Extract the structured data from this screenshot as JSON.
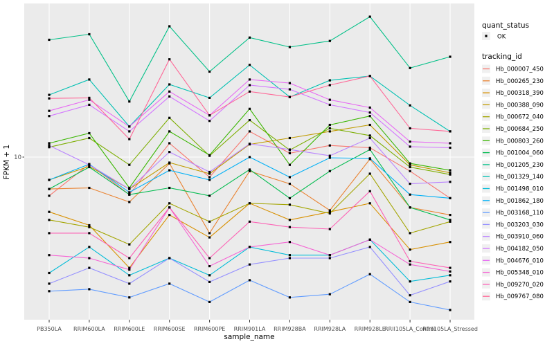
{
  "figure": {
    "background": "#FFFFFF",
    "panel_background": "#EBEBEB",
    "gridline_color": "#FFFFFF",
    "marker_color": "#000000",
    "tick_color": "#333333",
    "legend_key_background": "#F0F0F0"
  },
  "chart_data": {
    "type": "line",
    "title": "",
    "xlabel": "sample_name",
    "ylabel": "FPKM + 1",
    "y_scale": "log10",
    "ylim": [
      1,
      100
    ],
    "y_tick_labels": [
      "10"
    ],
    "grid": "major-on",
    "legend_position": "right",
    "marker": "small-black-square",
    "categories": [
      "PB350LA",
      "RRIM600LA",
      "RRIM600LE",
      "RRIM600SE",
      "RRIM600PE",
      "RRIM901LA",
      "RRIM928BA",
      "RRIM928LA",
      "RRIM928LE",
      "RRII105LA_Control",
      "RRII105LA_Stressed"
    ],
    "series": [
      {
        "name": "Hb_000007_450",
        "color": "#F8766D",
        "quant_status": "OK",
        "values": [
          5.6,
          9.0,
          5.7,
          12.3,
          7.4,
          14.7,
          10.6,
          11.9,
          11.5,
          8.1,
          5.4
        ]
      },
      {
        "name": "Hb_000265_230",
        "color": "#EA8331",
        "quant_status": "OK",
        "values": [
          6.2,
          6.3,
          5.1,
          9.1,
          3.2,
          8.1,
          6.7,
          4.5,
          9.7,
          4.7,
          4.2
        ]
      },
      {
        "name": "Hb_000318_390",
        "color": "#D89000",
        "quant_status": "OK",
        "values": [
          4.4,
          3.6,
          1.9,
          4.2,
          3.0,
          5.0,
          3.9,
          4.4,
          5.0,
          2.5,
          2.8
        ]
      },
      {
        "name": "Hb_000388_090",
        "color": "#C09B00",
        "quant_status": "OK",
        "values": [
          7.1,
          8.7,
          6.2,
          9.2,
          7.8,
          12.1,
          13.3,
          14.7,
          16.2,
          8.9,
          7.9
        ]
      },
      {
        "name": "Hb_000672_040",
        "color": "#A3A500",
        "quant_status": "OK",
        "values": [
          3.9,
          3.5,
          2.7,
          5.0,
          3.8,
          5.0,
          4.9,
          4.3,
          7.8,
          3.2,
          3.8
        ]
      },
      {
        "name": "Hb_000684_250",
        "color": "#7CAE00",
        "quant_status": "OK",
        "values": [
          11.6,
          13.3,
          8.9,
          18.0,
          10.2,
          17.4,
          11.1,
          15.4,
          13.8,
          8.6,
          7.7
        ]
      },
      {
        "name": "Hb_000803_260",
        "color": "#39B600",
        "quant_status": "OK",
        "values": [
          12.3,
          14.3,
          6.3,
          14.7,
          10.3,
          20.6,
          8.9,
          16.2,
          18.5,
          9.1,
          8.2
        ]
      },
      {
        "name": "Hb_001004_060",
        "color": "#00BB4E",
        "quant_status": "OK",
        "values": [
          6.2,
          8.6,
          5.7,
          6.3,
          5.6,
          8.3,
          5.4,
          8.1,
          11.2,
          4.7,
          3.9
        ]
      },
      {
        "name": "Hb_001205_230",
        "color": "#00C087",
        "quant_status": "OK",
        "values": [
          58,
          63,
          23,
          71,
          36,
          60,
          52,
          57,
          82,
          38,
          45
        ]
      },
      {
        "name": "Hb_001329_140",
        "color": "#00C0B2",
        "quant_status": "OK",
        "values": [
          25.4,
          32.0,
          15.8,
          29.7,
          24.3,
          39.8,
          24.6,
          31.6,
          33.7,
          21.7,
          14.7
        ]
      },
      {
        "name": "Hb_001498_010",
        "color": "#00BCD8",
        "quant_status": "OK",
        "values": [
          1.76,
          2.6,
          1.7,
          2.2,
          1.7,
          2.6,
          2.3,
          2.3,
          2.9,
          1.55,
          1.7
        ]
      },
      {
        "name": "Hb_001862_180",
        "color": "#00B0F6",
        "quant_status": "OK",
        "values": [
          7.1,
          9.0,
          5.9,
          8.2,
          7.1,
          10.0,
          7.4,
          9.9,
          9.8,
          5.7,
          5.4
        ]
      },
      {
        "name": "Hb_003168_110",
        "color": "#619CFF",
        "quant_status": "OK",
        "values": [
          1.34,
          1.38,
          1.22,
          1.5,
          1.14,
          1.58,
          1.22,
          1.28,
          1.73,
          1.14,
          1.01
        ]
      },
      {
        "name": "Hb_003203_030",
        "color": "#9590FF",
        "quant_status": "OK",
        "values": [
          1.5,
          1.9,
          1.5,
          2.2,
          1.54,
          2.0,
          2.2,
          2.2,
          2.6,
          1.26,
          1.55
        ]
      },
      {
        "name": "Hb_003910_060",
        "color": "#B983FF",
        "quant_status": "OK",
        "values": [
          11.9,
          8.9,
          6.2,
          10.8,
          8.0,
          12.2,
          11.2,
          10.2,
          13.3,
          6.7,
          6.9
        ]
      },
      {
        "name": "Hb_004182_050",
        "color": "#D376FF",
        "quant_status": "OK",
        "values": [
          18.5,
          21.9,
          14.7,
          24.8,
          17.2,
          29.4,
          27.6,
          21.9,
          19.5,
          11.7,
          11.5
        ]
      },
      {
        "name": "Hb_004676_010",
        "color": "#E76BF3",
        "quant_status": "OK",
        "values": [
          20.0,
          23.6,
          15.8,
          26.7,
          18.7,
          32.0,
          30.3,
          23.6,
          21.0,
          12.6,
          12.3
        ]
      },
      {
        "name": "Hb_005348_010",
        "color": "#F564D4",
        "quant_status": "OK",
        "values": [
          2.3,
          2.2,
          1.85,
          4.7,
          1.95,
          2.6,
          2.8,
          2.3,
          2.9,
          2.0,
          1.8
        ]
      },
      {
        "name": "Hb_009270_020",
        "color": "#FD61B5",
        "quant_status": "OK",
        "values": [
          3.2,
          3.2,
          2.2,
          4.7,
          2.2,
          3.8,
          3.5,
          3.4,
          6.0,
          2.1,
          1.9
        ]
      },
      {
        "name": "Hb_009767_080",
        "color": "#FF6797",
        "quant_status": "OK",
        "values": [
          24.1,
          24.3,
          13.1,
          43.3,
          18.7,
          26.7,
          24.6,
          29.4,
          33.7,
          15.4,
          14.7
        ]
      }
    ],
    "legend": {
      "quant_status": {
        "title": "quant_status",
        "items": [
          {
            "label": "OK",
            "glyph": "point-icon",
            "color": "#000000"
          }
        ]
      },
      "tracking_id": {
        "title": "tracking_id"
      }
    }
  }
}
